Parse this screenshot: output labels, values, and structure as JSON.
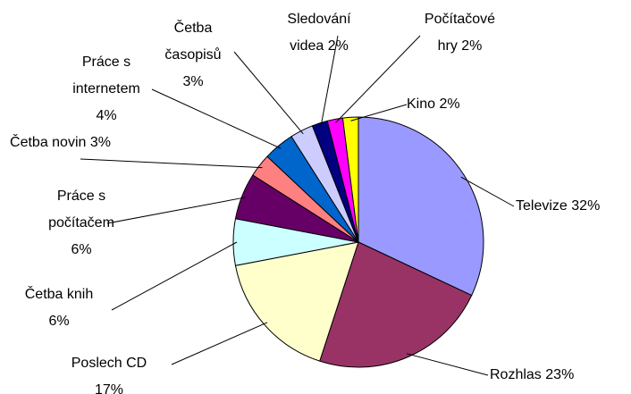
{
  "chart_data": {
    "type": "pie",
    "categories": [
      "Televize",
      "Rozhlas",
      "Poslech CD",
      "Četba knih",
      "Práce s počítačem",
      "Četba novin",
      "Práce s internetem",
      "Četba časopisů",
      "Sledování videa",
      "Počítačové hry",
      "Kino"
    ],
    "values": [
      32,
      23,
      17,
      6,
      6,
      3,
      4,
      3,
      2,
      2,
      2
    ],
    "value_labels": [
      "32%",
      "23%",
      "17%",
      "6%",
      "6%",
      "3%",
      "4%",
      "3%",
      "2%",
      "2%",
      "2%"
    ],
    "colors": [
      "#9999ff",
      "#993366",
      "#ffffcc",
      "#ccffff",
      "#660066",
      "#ff8080",
      "#0066cc",
      "#ccccff",
      "#000080",
      "#ff00ff",
      "#ffff00"
    ]
  }
}
